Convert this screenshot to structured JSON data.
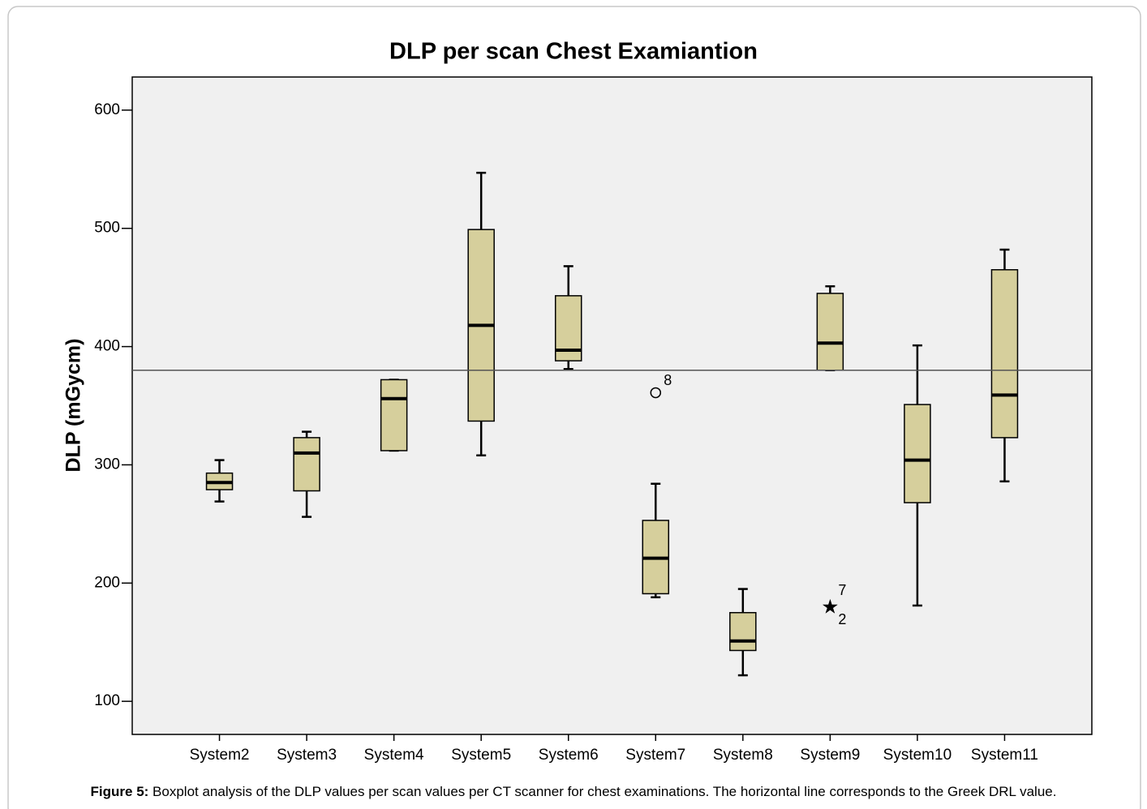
{
  "chart_data": {
    "type": "box",
    "title": "DLP per scan Chest Examiantion",
    "y_label": "DLP (mGycm)",
    "categories": [
      "System2",
      "System3",
      "System4",
      "System5",
      "System6",
      "System7",
      "System8",
      "System9",
      "System10",
      "System11"
    ],
    "boxes": [
      {
        "min": 269,
        "q1": 279,
        "median": 285,
        "q3": 293,
        "max": 304,
        "outliers": []
      },
      {
        "min": 256,
        "q1": 278,
        "median": 310,
        "q3": 323,
        "max": 328,
        "outliers": []
      },
      {
        "min": 312,
        "q1": 312,
        "median": 356,
        "q3": 372,
        "max": 372,
        "outliers": []
      },
      {
        "min": 308,
        "q1": 337,
        "median": 418,
        "q3": 499,
        "max": 547,
        "outliers": []
      },
      {
        "min": 381,
        "q1": 388,
        "median": 397,
        "q3": 443,
        "max": 468,
        "outliers": []
      },
      {
        "min": 188,
        "q1": 191,
        "median": 221,
        "q3": 253,
        "max": 284,
        "outliers": [
          {
            "value": 361,
            "label": "8",
            "marker": "circle"
          }
        ]
      },
      {
        "min": 122,
        "q1": 143,
        "median": 151,
        "q3": 175,
        "max": 195,
        "outliers": []
      },
      {
        "min": 380,
        "q1": 380,
        "median": 403,
        "q3": 445,
        "max": 451,
        "outliers": [
          {
            "value": 181,
            "label": "7",
            "marker": "star"
          },
          {
            "value": 181,
            "label": "2",
            "marker": "star"
          }
        ]
      },
      {
        "min": 181,
        "q1": 268,
        "median": 304,
        "q3": 351,
        "max": 401,
        "outliers": []
      },
      {
        "min": 286,
        "q1": 323,
        "median": 359,
        "q3": 465,
        "max": 482,
        "outliers": []
      }
    ],
    "reference_line": 380,
    "color": "#d6cf9c",
    "ylim": [
      72,
      628
    ],
    "yticks": [
      100,
      200,
      300,
      400,
      500,
      600
    ],
    "caption": {
      "label": "Figure 5:",
      "text": " Boxplot analysis of the DLP values per scan values per CT scanner for chest examinations. The horizontal line corresponds to the Greek DRL value."
    }
  }
}
